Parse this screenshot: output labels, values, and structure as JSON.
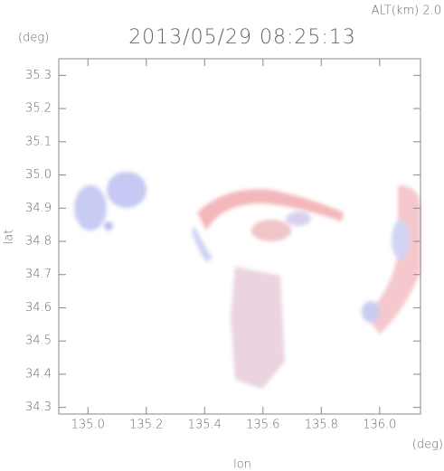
{
  "chart_data": {
    "type": "map",
    "annotation": "ALT(km) 2.0",
    "title": "2013/05/29 08:25:13",
    "y_unit": "(deg)",
    "x_unit": "(deg)",
    "y_label": "lat",
    "x_label": "lon",
    "xlim": [
      134.9,
      136.14
    ],
    "ylim": [
      34.28,
      35.35
    ],
    "xticks": [
      {
        "value": 135,
        "label": "135.0"
      },
      135.2,
      135.4,
      135.6,
      135.8,
      {
        "value": 136,
        "label": "136.0"
      }
    ],
    "yticks": [
      35.3,
      35.2,
      35.1,
      {
        "value": 35,
        "label": "35.0"
      },
      34.9,
      34.8,
      34.7,
      34.6,
      34.5,
      34.4,
      34.3
    ]
  }
}
